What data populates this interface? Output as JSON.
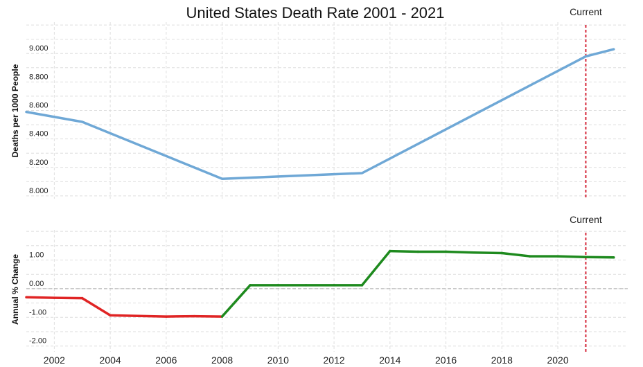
{
  "chart_data": [
    {
      "type": "line",
      "title": "United States Death Rate 2001 - 2021",
      "ylabel": "Deaths per 1000 People",
      "xlabel": "",
      "xlim": [
        2001,
        2022.5
      ],
      "ylim": [
        7.98,
        9.22
      ],
      "yticks": [
        8.0,
        8.2,
        8.4,
        8.6,
        8.8,
        9.0
      ],
      "ytick_labels": [
        "8.000",
        "8.200",
        "8.400",
        "8.600",
        "8.800",
        "9.000"
      ],
      "grid": true,
      "marker_label": "Current",
      "marker_x": 2021,
      "marker_color": "#d6283a",
      "series": [
        {
          "color": "#6fa8d6",
          "x": [
            2001,
            2003,
            2008,
            2013,
            2021,
            2022
          ],
          "y": [
            8.59,
            8.52,
            8.12,
            8.16,
            8.98,
            9.03
          ]
        }
      ]
    },
    {
      "type": "line",
      "ylabel": "Annual % Change",
      "xlabel": "",
      "xlim": [
        2001,
        2022.5
      ],
      "ylim": [
        -2.2,
        2.05
      ],
      "yticks": [
        -2.0,
        -1.0,
        0.0,
        1.0
      ],
      "ytick_labels": [
        "-2.00",
        "-1.00",
        "0.00",
        "1.00"
      ],
      "grid": true,
      "zero_line": true,
      "marker_label": "Current",
      "marker_x": 2021,
      "marker_color": "#d6283a",
      "positive_color": "#1e8a1e",
      "negative_color": "#e02424",
      "series": [
        {
          "x": [
            2001,
            2002,
            2003,
            2004,
            2005,
            2006,
            2007,
            2008,
            2009,
            2010,
            2011,
            2012,
            2013,
            2014,
            2015,
            2016,
            2017,
            2018,
            2019,
            2020,
            2021,
            2022
          ],
          "y": [
            -0.3,
            -0.32,
            -0.33,
            -0.93,
            -0.95,
            -0.97,
            -0.96,
            -0.97,
            0.12,
            0.12,
            0.12,
            0.12,
            0.12,
            1.31,
            1.29,
            1.29,
            1.26,
            1.24,
            1.13,
            1.13,
            1.1,
            1.09
          ]
        }
      ]
    }
  ],
  "x_axis": {
    "ticks": [
      2002,
      2004,
      2006,
      2008,
      2010,
      2012,
      2014,
      2016,
      2018,
      2020
    ],
    "tick_labels": [
      "2002",
      "2004",
      "2006",
      "2008",
      "2010",
      "2012",
      "2014",
      "2016",
      "2018",
      "2020"
    ]
  }
}
